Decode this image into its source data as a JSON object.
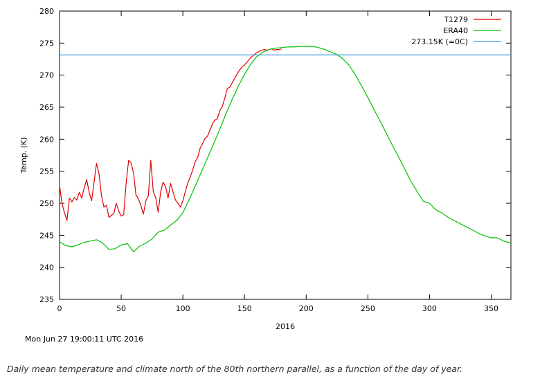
{
  "timestamp": "Mon Jun 27 19:00:11 UTC 2016",
  "caption": "Daily mean temperature and climate north of the 80th northern parallel, as a function of the day of year.",
  "chart_data": {
    "type": "line",
    "title": "",
    "xlabel": "2016",
    "ylabel": "Temp. (K)",
    "xlim": [
      0,
      366
    ],
    "ylim": [
      235,
      280
    ],
    "xticks": [
      0,
      50,
      100,
      150,
      200,
      250,
      300,
      350
    ],
    "yticks": [
      235,
      240,
      245,
      250,
      255,
      260,
      265,
      270,
      275,
      280
    ],
    "legend_position": "top-right",
    "grid": false,
    "series": [
      {
        "name": "T1279",
        "color": "#e00000",
        "x": [
          0,
          2,
          4,
          6,
          8,
          10,
          12,
          14,
          16,
          18,
          20,
          22,
          24,
          26,
          28,
          30,
          32,
          34,
          36,
          38,
          40,
          42,
          44,
          46,
          48,
          50,
          52,
          54,
          56,
          58,
          60,
          62,
          64,
          66,
          68,
          70,
          72,
          74,
          76,
          78,
          80,
          82,
          84,
          86,
          88,
          90,
          92,
          94,
          96,
          98,
          100,
          102,
          104,
          106,
          108,
          110,
          112,
          114,
          116,
          118,
          120,
          122,
          124,
          126,
          128,
          130,
          132,
          134,
          136,
          138,
          140,
          142,
          144,
          146,
          148,
          150,
          152,
          154,
          156,
          158,
          160,
          162,
          164,
          166,
          168,
          170,
          172,
          174,
          176,
          178,
          180
        ],
        "y": [
          252.8,
          250,
          248.5,
          247.3,
          250.8,
          250.2,
          250.9,
          250.5,
          251.7,
          250.8,
          252.4,
          253.7,
          251.7,
          250.4,
          253.3,
          256.2,
          254.6,
          251.2,
          249.4,
          249.7,
          247.8,
          248.1,
          248.4,
          250,
          248.8,
          248,
          248.2,
          253.1,
          256.7,
          256.3,
          254.7,
          251.3,
          250.7,
          249.6,
          248.3,
          250.4,
          251.2,
          256.7,
          251.8,
          250.8,
          248.6,
          251.8,
          253.3,
          252.6,
          250.8,
          253.1,
          251.8,
          250.5,
          250,
          249.4,
          250.4,
          251.8,
          253.2,
          254.1,
          255.2,
          256.5,
          257.1,
          258.6,
          259.3,
          260.1,
          260.5,
          261.4,
          262.4,
          263,
          263.2,
          264.5,
          265.1,
          266.4,
          267.9,
          268.1,
          268.8,
          269.5,
          270.2,
          270.8,
          271.3,
          271.6,
          272,
          272.5,
          272.9,
          273.2,
          273.5,
          273.7,
          273.9,
          274,
          273.9,
          274,
          274.1,
          273.9,
          274,
          274,
          274.1
        ]
      },
      {
        "name": "ERA40",
        "color": "#00c000",
        "x": [
          0,
          5,
          10,
          15,
          20,
          25,
          30,
          35,
          40,
          45,
          50,
          55,
          60,
          65,
          70,
          75,
          80,
          85,
          90,
          95,
          100,
          105,
          110,
          115,
          120,
          125,
          130,
          135,
          140,
          145,
          150,
          155,
          160,
          165,
          170,
          175,
          180,
          185,
          190,
          195,
          200,
          205,
          210,
          215,
          220,
          225,
          230,
          235,
          240,
          245,
          250,
          255,
          260,
          265,
          270,
          275,
          280,
          285,
          290,
          295,
          300,
          305,
          310,
          315,
          320,
          325,
          330,
          335,
          340,
          345,
          350,
          355,
          360,
          366
        ],
        "y": [
          244,
          243.4,
          243.2,
          243.5,
          243.9,
          244.1,
          244.3,
          243.8,
          242.8,
          242.9,
          243.5,
          243.7,
          242.4,
          243.3,
          243.8,
          244.4,
          245.5,
          245.8,
          246.6,
          247.3,
          248.5,
          250.5,
          252.7,
          254.9,
          257.1,
          259.3,
          261.6,
          264,
          266.2,
          268.3,
          270.1,
          271.7,
          272.9,
          273.6,
          274,
          274.2,
          274.3,
          274.4,
          274.4,
          274.5,
          274.5,
          274.5,
          274.3,
          274,
          273.6,
          273.2,
          272.5,
          271.5,
          270,
          268.3,
          266.5,
          264.6,
          262.8,
          260.9,
          259,
          257.2,
          255.3,
          253.4,
          251.8,
          250.3,
          250,
          249,
          248.5,
          247.8,
          247.3,
          246.8,
          246.3,
          245.8,
          245.3,
          244.9,
          244.6,
          244.6,
          244.1,
          243.8
        ]
      },
      {
        "name": "273.15K (=0C)",
        "color": "#3399dd",
        "x": [
          0,
          366
        ],
        "y": [
          273.15,
          273.15
        ]
      }
    ]
  }
}
